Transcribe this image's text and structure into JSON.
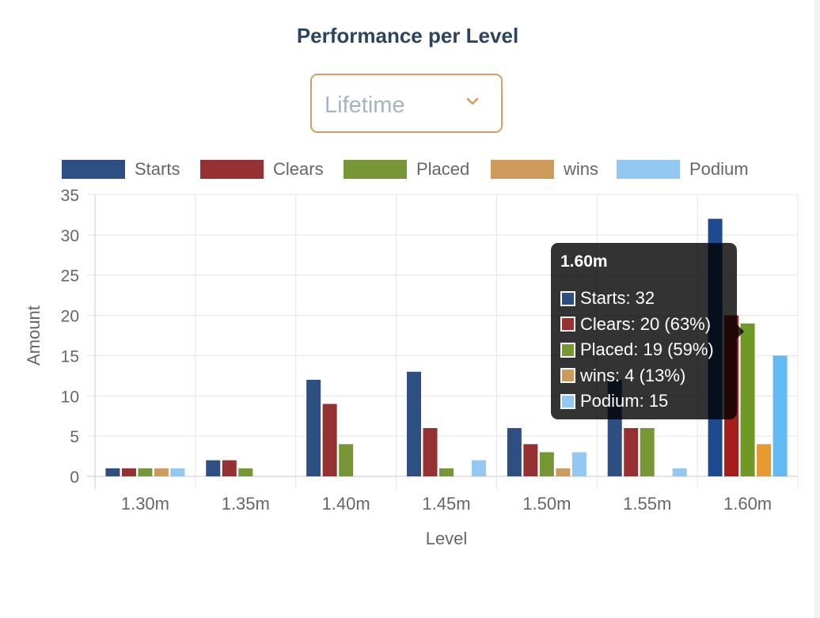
{
  "title": "Performance per Level",
  "period_select": {
    "value": "Lifetime"
  },
  "chart_data": {
    "type": "bar",
    "title": "",
    "xlabel": "Level",
    "ylabel": "Amount",
    "ylim": [
      0,
      35
    ],
    "yticks": [
      "0",
      "5",
      "10",
      "15",
      "20",
      "25",
      "30",
      "35"
    ],
    "categories": [
      "1.30m",
      "1.35m",
      "1.40m",
      "1.45m",
      "1.50m",
      "1.55m",
      "1.60m"
    ],
    "legend_position": "top",
    "grid": true,
    "series": [
      {
        "name": "Starts",
        "color": "#2d4f82",
        "values": [
          1,
          2,
          12,
          13,
          6,
          12,
          32
        ]
      },
      {
        "name": "Clears",
        "color": "#953033",
        "values": [
          1,
          2,
          9,
          6,
          4,
          6,
          20
        ]
      },
      {
        "name": "Placed",
        "color": "#779737",
        "values": [
          1,
          1,
          4,
          1,
          3,
          6,
          19
        ]
      },
      {
        "name": "wins",
        "color": "#cf9b5d",
        "values": [
          1,
          0,
          0,
          0,
          1,
          0,
          4
        ]
      },
      {
        "name": "Podium",
        "color": "#93c8f2",
        "values": [
          1,
          0,
          0,
          2,
          3,
          1,
          15
        ]
      }
    ],
    "highlight": {
      "category": "1.60m",
      "colors": [
        "#1e4a90",
        "#a51e1c",
        "#6f9825",
        "#e79a30",
        "#63baf3"
      ]
    }
  },
  "tooltip": {
    "title": "1.60m",
    "rows": [
      {
        "text": "Starts: 32",
        "color": "#2d4f82"
      },
      {
        "text": "Clears: 20 (63%)",
        "color": "#953033"
      },
      {
        "text": "Placed: 19 (59%)",
        "color": "#779737"
      },
      {
        "text": "wins: 4 (13%)",
        "color": "#cf9b5d"
      },
      {
        "text": "Podium: 15",
        "color": "#93c8f2"
      }
    ]
  }
}
